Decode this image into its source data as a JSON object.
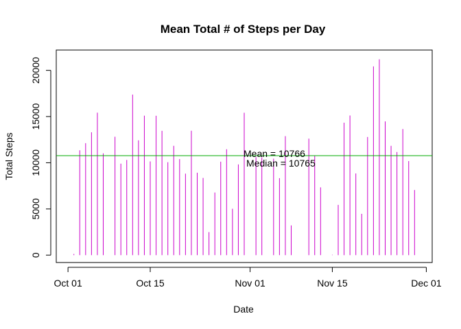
{
  "chart_data": {
    "type": "bar",
    "title": "Mean Total # of Steps per Day",
    "xlabel": "Date",
    "ylabel": "Total Steps",
    "x_ticks": [
      "Oct 01",
      "Oct 15",
      "Nov 01",
      "Nov 15",
      "Dec 01"
    ],
    "x_tick_dates": [
      "2012-10-01",
      "2012-10-15",
      "2012-11-01",
      "2012-11-15",
      "2012-12-01"
    ],
    "x_range": [
      "2012-09-29",
      "2012-12-02"
    ],
    "y_ticks": [
      0,
      5000,
      10000,
      15000,
      20000
    ],
    "ylim": [
      -800,
      22200
    ],
    "bar_color": "#cc00cc",
    "mean_line_color": "#00aa00",
    "mean_value": 10766,
    "annotations": {
      "mean": "Mean = 10766",
      "median": "Median = 10765"
    },
    "x": [
      "2012-10-02",
      "2012-10-03",
      "2012-10-04",
      "2012-10-05",
      "2012-10-06",
      "2012-10-07",
      "2012-10-09",
      "2012-10-10",
      "2012-10-11",
      "2012-10-12",
      "2012-10-13",
      "2012-10-14",
      "2012-10-15",
      "2012-10-16",
      "2012-10-17",
      "2012-10-18",
      "2012-10-19",
      "2012-10-20",
      "2012-10-21",
      "2012-10-22",
      "2012-10-23",
      "2012-10-24",
      "2012-10-25",
      "2012-10-26",
      "2012-10-27",
      "2012-10-28",
      "2012-10-29",
      "2012-10-30",
      "2012-10-31",
      "2012-11-02",
      "2012-11-03",
      "2012-11-05",
      "2012-11-06",
      "2012-11-07",
      "2012-11-08",
      "2012-11-11",
      "2012-11-12",
      "2012-11-13",
      "2012-11-15",
      "2012-11-16",
      "2012-11-17",
      "2012-11-18",
      "2012-11-19",
      "2012-11-20",
      "2012-11-21",
      "2012-11-22",
      "2012-11-23",
      "2012-11-24",
      "2012-11-25",
      "2012-11-26",
      "2012-11-27",
      "2012-11-28",
      "2012-11-29"
    ],
    "values": [
      126,
      11352,
      12116,
      13294,
      15420,
      11015,
      12811,
      9900,
      10304,
      17382,
      12426,
      15098,
      10139,
      15084,
      13452,
      10056,
      11829,
      10395,
      8821,
      13460,
      8918,
      8355,
      2492,
      6778,
      10119,
      11458,
      5018,
      9819,
      15414,
      10600,
      10571,
      10439,
      8334,
      12883,
      3219,
      12608,
      10765,
      7336,
      41,
      5441,
      14339,
      15110,
      8841,
      4472,
      12787,
      20427,
      21194,
      14478,
      11834,
      11162,
      13646,
      10183,
      7047
    ]
  }
}
